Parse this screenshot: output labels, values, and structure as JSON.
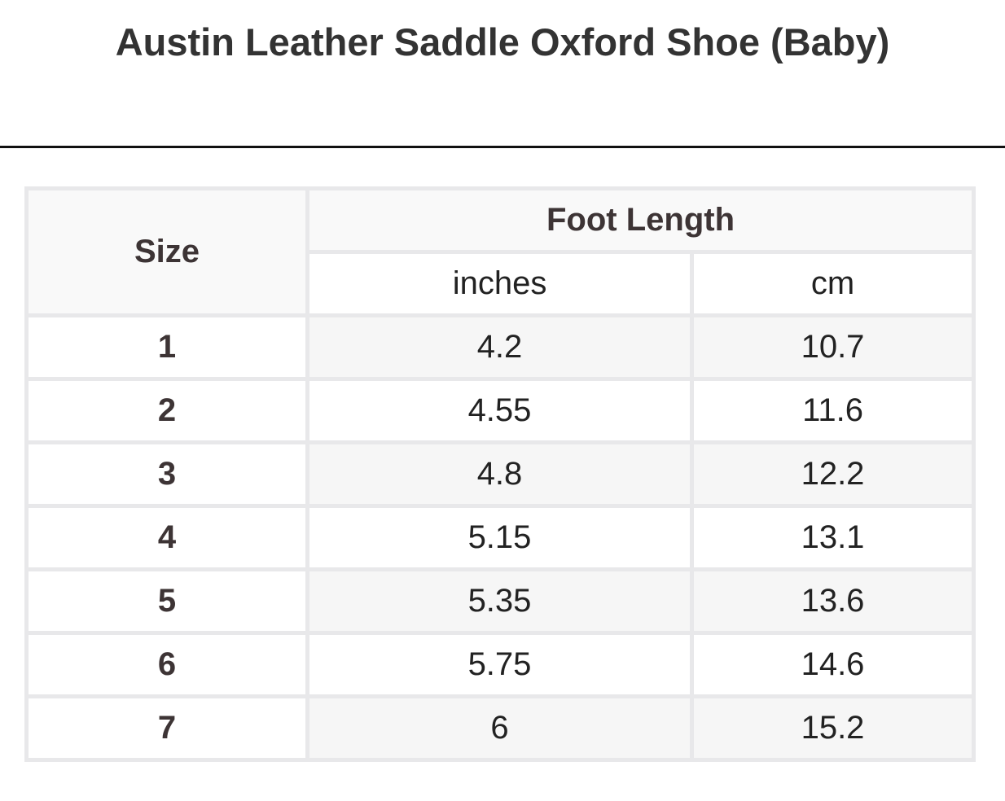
{
  "title": "Austin Leather Saddle Oxford Shoe (Baby)",
  "table": {
    "size_header": "Size",
    "group_header": "Foot Length",
    "units": [
      "inches",
      "cm"
    ],
    "rows": [
      {
        "size": "1",
        "inches": "4.2",
        "cm": "10.7"
      },
      {
        "size": "2",
        "inches": "4.55",
        "cm": "11.6"
      },
      {
        "size": "3",
        "inches": "4.8",
        "cm": "12.2"
      },
      {
        "size": "4",
        "inches": "5.15",
        "cm": "13.1"
      },
      {
        "size": "5",
        "inches": "5.35",
        "cm": "13.6"
      },
      {
        "size": "6",
        "inches": "5.75",
        "cm": "14.6"
      },
      {
        "size": "7",
        "inches": "6",
        "cm": "15.2"
      }
    ]
  }
}
